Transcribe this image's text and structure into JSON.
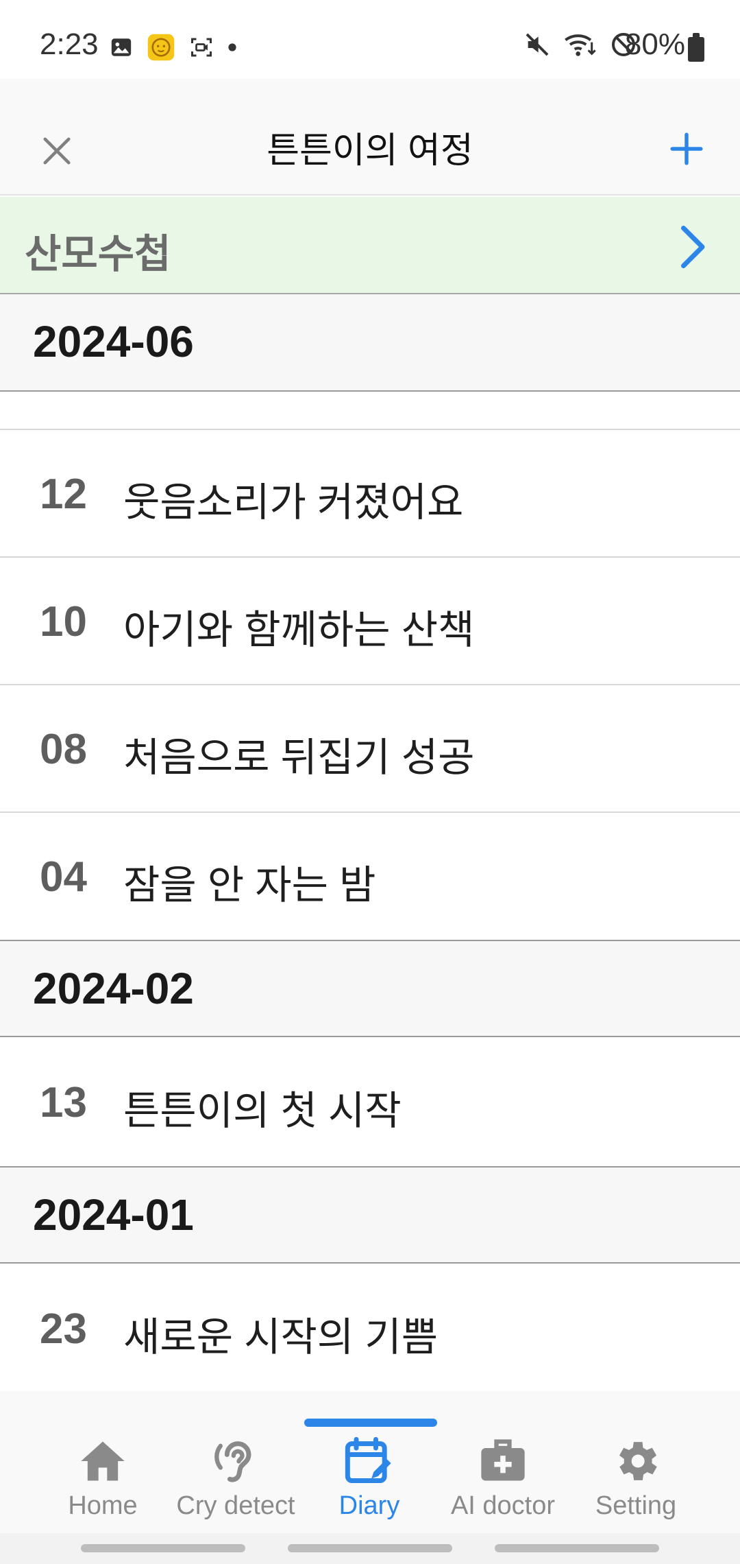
{
  "status_bar": {
    "time": "2:23",
    "battery": "80%",
    "left_icons": [
      "image-icon",
      "baby-app-icon",
      "screen-record-icon",
      "dot-icon"
    ],
    "right_icons": [
      "mute-icon",
      "wifi-icon",
      "do-not-disturb-icon"
    ]
  },
  "header": {
    "title": "튼튼이의 여정",
    "close_icon": "close-icon",
    "add_icon": "plus-icon",
    "accent_color": "#2b86e8"
  },
  "banner": {
    "label": "산모수첩",
    "background": "#e9f8e6"
  },
  "sections": [
    {
      "month": "2024-06",
      "entries": [
        {
          "day": "12",
          "title": "웃음소리가 커졌어요"
        },
        {
          "day": "10",
          "title": "아기와 함께하는 산책"
        },
        {
          "day": "08",
          "title": "처음으로 뒤집기 성공"
        },
        {
          "day": "04",
          "title": "잠을 안 자는 밤"
        }
      ]
    },
    {
      "month": "2024-02",
      "entries": [
        {
          "day": "13",
          "title": "튼튼이의 첫 시작"
        }
      ]
    },
    {
      "month": "2024-01",
      "entries": [
        {
          "day": "23",
          "title": "새로운 시작의 기쁨"
        }
      ]
    }
  ],
  "bottom_nav": {
    "items": [
      {
        "label": "Home",
        "icon": "home-icon"
      },
      {
        "label": "Cry detect",
        "icon": "ear-icon"
      },
      {
        "label": "Diary",
        "icon": "calendar-edit-icon"
      },
      {
        "label": "AI doctor",
        "icon": "medical-kit-icon"
      },
      {
        "label": "Setting",
        "icon": "gear-icon"
      }
    ],
    "active_index": 2
  }
}
